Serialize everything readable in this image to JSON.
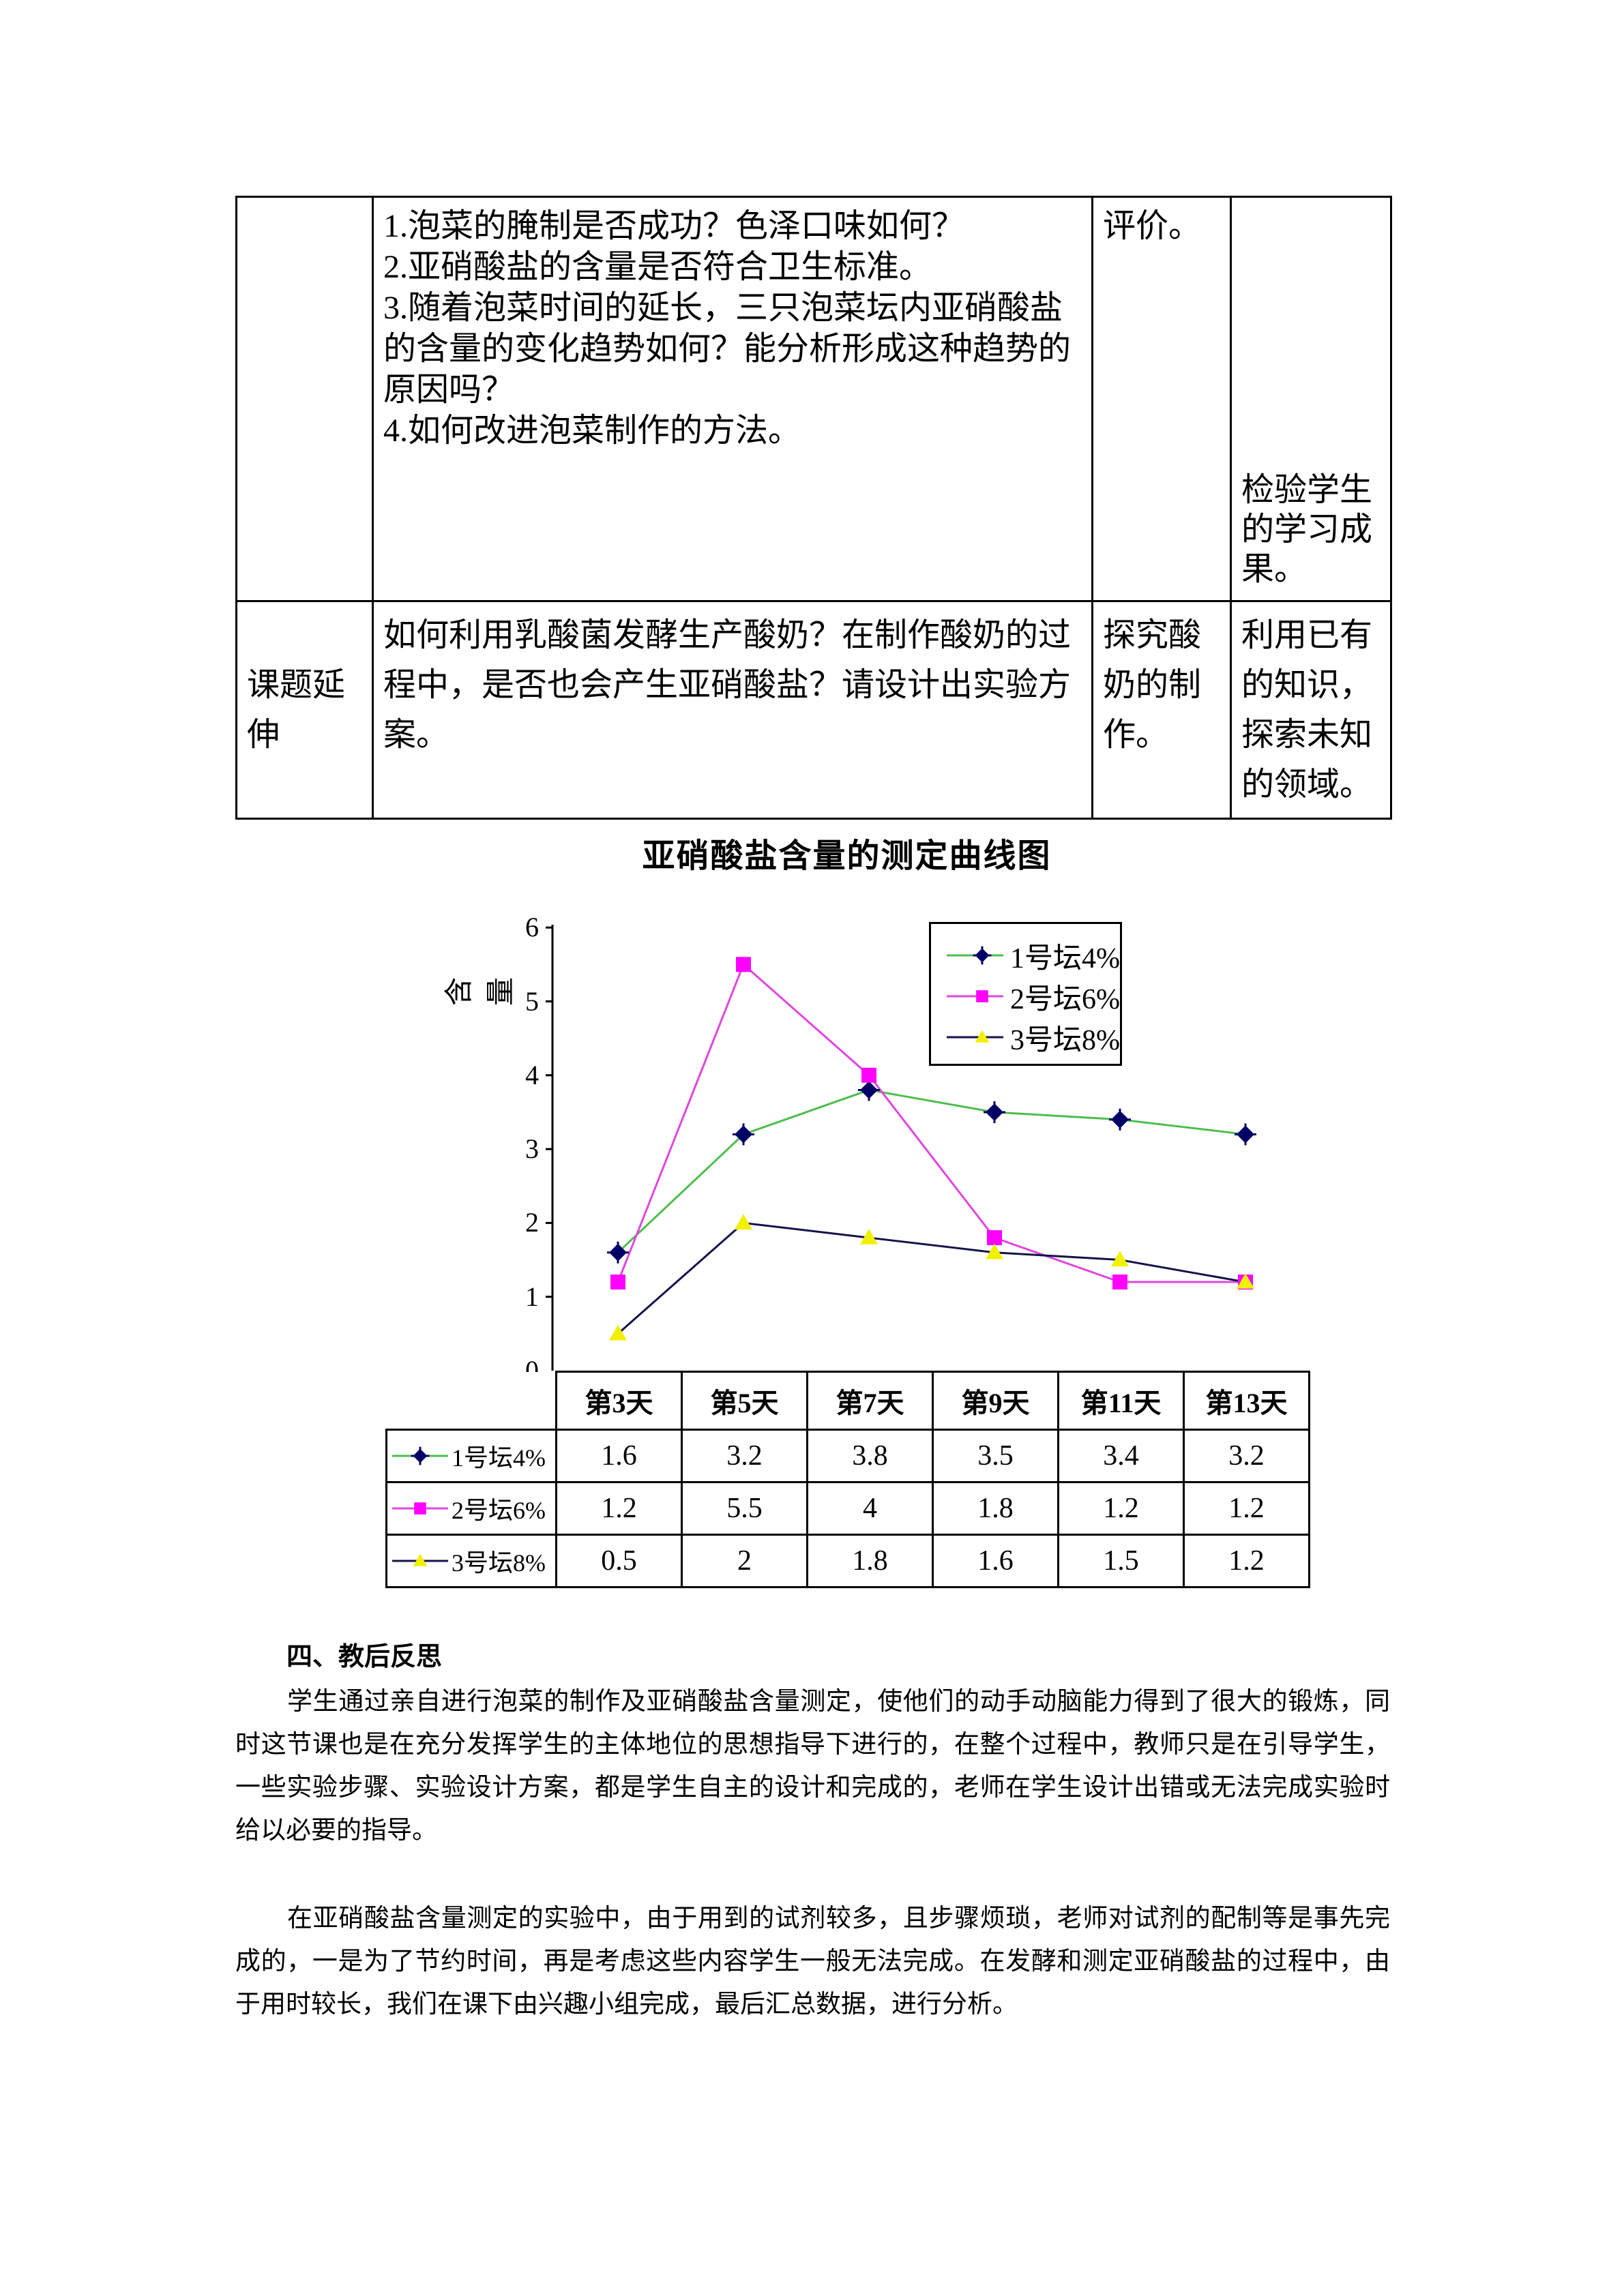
{
  "table": {
    "row1": {
      "col1": "",
      "col2_items": [
        "1.泡菜的腌制是否成功？色泽口味如何？",
        "2.亚硝酸盐的含量是否符合卫生标准。",
        "3.随着泡菜时间的延长，三只泡菜坛内亚硝酸盐的含量的变化趋势如何？能分析形成这种趋势的原因吗？",
        "4.如何改进泡菜制作的方法。"
      ],
      "col3": "评价。",
      "col4": "检验学生的学习成果。"
    },
    "row2": {
      "col1": "课题延伸",
      "col2": "如何利用乳酸菌发酵生产酸奶？在制作酸奶的过程中，是否也会产生亚硝酸盐？请设计出实验方案。",
      "col3": "探究酸奶的制作。",
      "col4": "利用已有的知识，探索未知的领域。"
    }
  },
  "chart_data": {
    "type": "line",
    "title": "亚硝酸盐含量的测定曲线图",
    "xlabel": "",
    "ylabel": "含量",
    "categories": [
      "第3天",
      "第5天",
      "第7天",
      "第9天",
      "第11天",
      "第13天"
    ],
    "series": [
      {
        "name": "1号坛4%",
        "values": [
          1.6,
          3.2,
          3.8,
          3.5,
          3.4,
          3.2
        ],
        "line_color": "#4DBE4D",
        "marker": "diamond",
        "marker_color": "#000066"
      },
      {
        "name": "2号坛6%",
        "values": [
          1.2,
          5.5,
          4,
          1.8,
          1.2,
          1.2
        ],
        "line_color": "#E146E1",
        "marker": "square",
        "marker_color": "#FF00FF"
      },
      {
        "name": "3号坛8%",
        "values": [
          0.5,
          2,
          1.8,
          1.6,
          1.5,
          1.2
        ],
        "line_color": "#13134B",
        "marker": "triangle",
        "marker_color": "#F0F000"
      }
    ],
    "ylim": [
      0,
      6
    ],
    "yticks": [
      0,
      1,
      2,
      3,
      4,
      5,
      6
    ],
    "grid": false,
    "legend_position": "top-right-inside",
    "data_table": true,
    "axis_color": "#000000"
  },
  "reflection": {
    "heading": "四、教后反思",
    "paragraphs": [
      "学生通过亲自进行泡菜的制作及亚硝酸盐含量测定，使他们的动手动脑能力得到了很大的锻炼，同时这节课也是在充分发挥学生的主体地位的思想指导下进行的，在整个过程中，教师只是在引导学生，一些实验步骤、实验设计方案，都是学生自主的设计和完成的，老师在学生设计出错或无法完成实验时给以必要的指导。",
      "在亚硝酸盐含量测定的实验中，由于用到的试剂较多，且步骤烦琐，老师对试剂的配制等是事先完成的，一是为了节约时间，再是考虑这些内容学生一般无法完成。在发酵和测定亚硝酸盐的过程中，由于用时较长，我们在课下由兴趣小组完成，最后汇总数据，进行分析。"
    ]
  }
}
